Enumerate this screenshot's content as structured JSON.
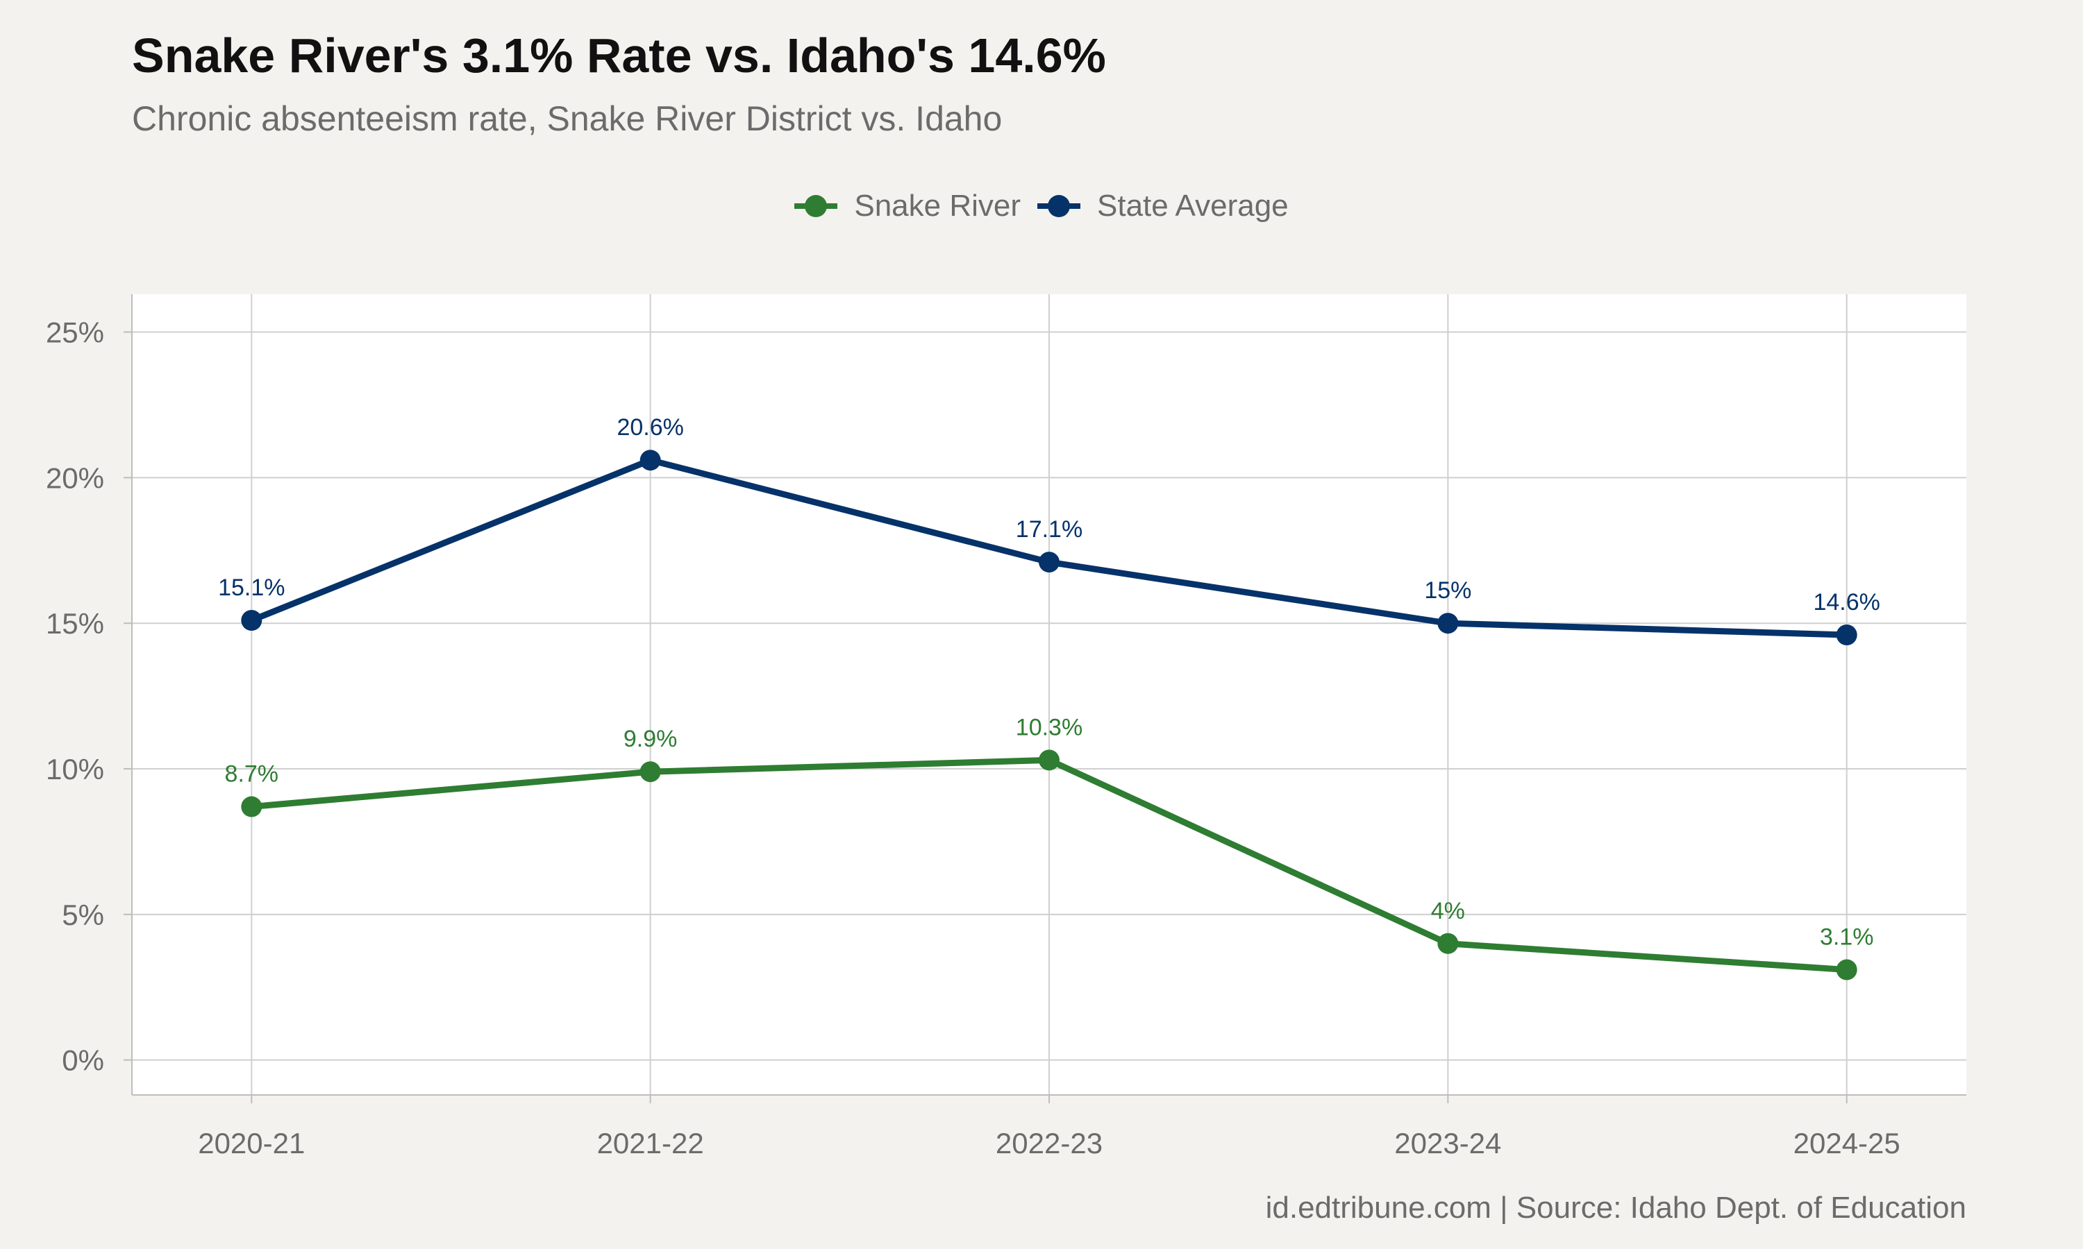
{
  "colors": {
    "snake_river": "#2e7d32",
    "state_average": "#06326a",
    "background": "#f4f2ee",
    "panel": "#ffffff",
    "grid": "#cfcfcf"
  },
  "caption": "id.edtribune.com | Source: Idaho Dept. of Education",
  "chart_data": {
    "type": "line",
    "title": "Snake River's 3.1% Rate vs. Idaho's 14.6%",
    "subtitle": "Chronic absenteeism rate, Snake River District vs. Idaho",
    "xlabel": "",
    "ylabel": "",
    "categories": [
      "2020-21",
      "2021-22",
      "2022-23",
      "2023-24",
      "2024-25"
    ],
    "ylim": [
      -1.2,
      26.3
    ],
    "yticks": [
      0,
      5,
      10,
      15,
      20,
      25
    ],
    "ytick_labels": [
      "0%",
      "5%",
      "10%",
      "15%",
      "20%",
      "25%"
    ],
    "grid": true,
    "legend_position": "top",
    "series": [
      {
        "name": "Snake River",
        "values": [
          8.7,
          9.9,
          10.3,
          4.0,
          3.1
        ],
        "labels": [
          "8.7%",
          "9.9%",
          "10.3%",
          "4%",
          "3.1%"
        ],
        "color": "#2e7d32"
      },
      {
        "name": "State Average",
        "values": [
          15.1,
          20.6,
          17.1,
          15.0,
          14.6
        ],
        "labels": [
          "15.1%",
          "20.6%",
          "17.1%",
          "15%",
          "14.6%"
        ],
        "color": "#06326a"
      }
    ]
  }
}
